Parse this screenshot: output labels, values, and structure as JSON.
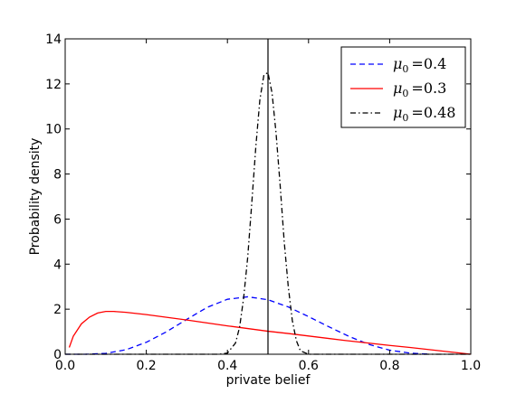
{
  "chart_data": {
    "type": "line",
    "xlabel": "private belief",
    "ylabel": "Probability density",
    "xlim": [
      0.0,
      1.0
    ],
    "ylim": [
      0,
      14
    ],
    "x_ticks": [
      "0.0",
      "0.2",
      "0.4",
      "0.6",
      "0.8",
      "1.0"
    ],
    "y_ticks": [
      "0",
      "2",
      "4",
      "6",
      "8",
      "10",
      "12",
      "14"
    ],
    "grid": false,
    "legend_position": "top-right",
    "vertical_line_x": 0.5,
    "series": [
      {
        "name": "μ0 = 0.4",
        "legend_base": "μ",
        "legend_sub": "0",
        "legend_value": "=0.4",
        "color": "#0000ff",
        "style": "dashed",
        "x": [
          0.0,
          0.05,
          0.1,
          0.15,
          0.2,
          0.25,
          0.3,
          0.35,
          0.4,
          0.45,
          0.5,
          0.55,
          0.6,
          0.65,
          0.7,
          0.75,
          0.8,
          0.85,
          0.9
        ],
        "y": [
          0.0,
          0.0,
          0.04,
          0.2,
          0.53,
          1.0,
          1.55,
          2.08,
          2.44,
          2.55,
          2.42,
          2.1,
          1.67,
          1.22,
          0.79,
          0.43,
          0.18,
          0.05,
          0.0
        ]
      },
      {
        "name": "μ0 = 0.3",
        "legend_base": "μ",
        "legend_sub": "0",
        "legend_value": "=0.3",
        "color": "#ff0000",
        "style": "solid",
        "x": [
          0.01,
          0.02,
          0.04,
          0.06,
          0.08,
          0.1,
          0.12,
          0.15,
          0.2,
          0.25,
          0.3,
          0.35,
          0.4,
          0.45,
          0.5,
          0.55,
          0.6,
          0.65,
          0.7,
          0.75,
          0.8,
          0.85,
          0.9,
          0.95,
          1.0
        ],
        "y": [
          0.3,
          0.8,
          1.35,
          1.65,
          1.83,
          1.9,
          1.9,
          1.86,
          1.76,
          1.64,
          1.52,
          1.39,
          1.26,
          1.14,
          1.02,
          0.92,
          0.81,
          0.7,
          0.59,
          0.49,
          0.39,
          0.3,
          0.2,
          0.1,
          0.0
        ]
      },
      {
        "name": "μ0 = 0.48",
        "legend_base": "μ",
        "legend_sub": "0",
        "legend_value": "=0.48",
        "color": "#000000",
        "style": "dashdot",
        "x": [
          0.0,
          0.38,
          0.4,
          0.42,
          0.43,
          0.44,
          0.45,
          0.46,
          0.47,
          0.48,
          0.49,
          0.5,
          0.51,
          0.52,
          0.53,
          0.54,
          0.55,
          0.56,
          0.57,
          0.58,
          0.6,
          1.0
        ],
        "y": [
          0.0,
          0.0,
          0.05,
          0.5,
          1.2,
          2.5,
          4.3,
          6.7,
          9.2,
          11.3,
          12.4,
          12.5,
          11.6,
          9.8,
          7.5,
          5.0,
          3.0,
          1.5,
          0.6,
          0.15,
          0.0,
          0.0
        ]
      }
    ]
  }
}
